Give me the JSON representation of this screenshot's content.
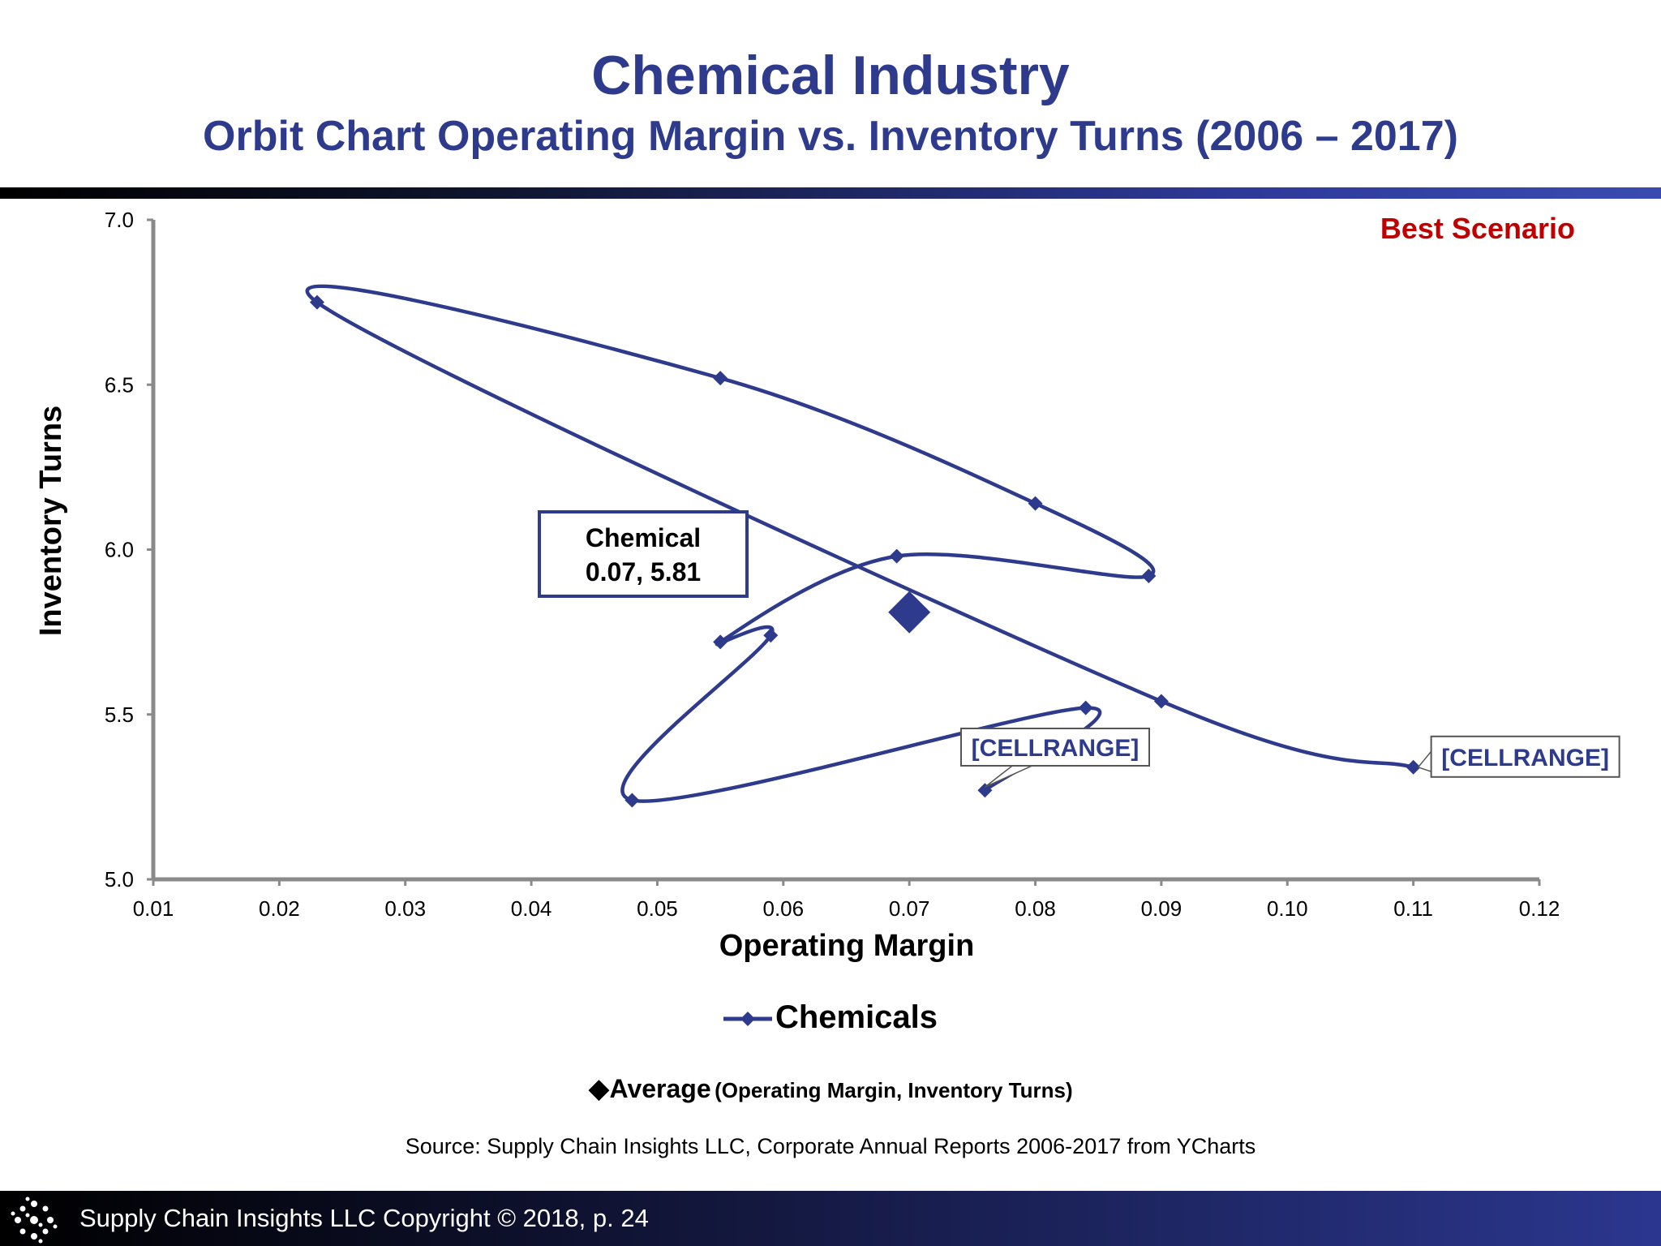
{
  "header": {
    "title": "Chemical Industry",
    "subtitle": "Orbit Chart Operating Margin vs. Inventory Turns (2006 – 2017)"
  },
  "chart_data": {
    "type": "line",
    "xlabel": "Operating Margin",
    "ylabel": "Inventory Turns",
    "xlim": [
      0.01,
      0.12
    ],
    "ylim": [
      5.0,
      7.0
    ],
    "x_ticks": [
      "0.01",
      "0.02",
      "0.03",
      "0.04",
      "0.05",
      "0.06",
      "0.07",
      "0.08",
      "0.09",
      "0.10",
      "0.11",
      "0.12"
    ],
    "y_ticks": [
      "5.0",
      "5.5",
      "6.0",
      "6.5",
      "7.0"
    ],
    "grid": false,
    "legend_position": "bottom",
    "series": [
      {
        "name": "Chemicals",
        "color": "#2e3a8c",
        "marker": "diamond",
        "points": [
          {
            "x": 0.11,
            "y": 5.34
          },
          {
            "x": 0.09,
            "y": 5.54
          },
          {
            "x": 0.023,
            "y": 6.75
          },
          {
            "x": 0.055,
            "y": 6.52
          },
          {
            "x": 0.08,
            "y": 6.14
          },
          {
            "x": 0.089,
            "y": 5.92
          },
          {
            "x": 0.069,
            "y": 5.98
          },
          {
            "x": 0.055,
            "y": 5.72
          },
          {
            "x": 0.059,
            "y": 5.74
          },
          {
            "x": 0.048,
            "y": 5.24
          },
          {
            "x": 0.084,
            "y": 5.52
          },
          {
            "x": 0.076,
            "y": 5.27
          }
        ]
      }
    ],
    "average": {
      "x": 0.07,
      "y": 5.81,
      "label_name": "Chemical",
      "label_values": "0.07, 5.81",
      "color": "#2e3a8c"
    },
    "annotations": [
      {
        "text": "Best Scenario",
        "position": "top-right",
        "color": "#c00000"
      },
      {
        "text": "[CELLRANGE]",
        "anchor": "first-point"
      },
      {
        "text": "[CELLRANGE]",
        "anchor": "last-point"
      }
    ]
  },
  "legend": {
    "series_label": "Chemicals",
    "average_label": "Average",
    "average_description": "(Operating Margin, Inventory Turns)",
    "average_glyph": "◆"
  },
  "source": "Source:  Supply Chain Insights LLC, Corporate Annual Reports 2006-2017 from YCharts",
  "footer": {
    "text": "Supply Chain Insights LLC Copyright © 2018, p. 24"
  }
}
